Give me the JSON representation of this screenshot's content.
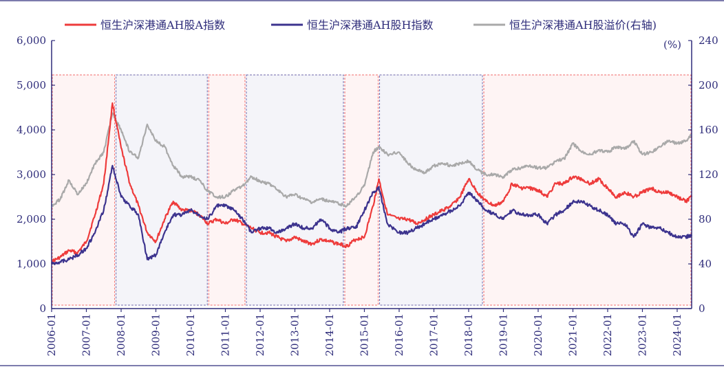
{
  "chart_data": {
    "type": "line",
    "title": "",
    "legend": {
      "placement": "top",
      "entries": [
        {
          "name": "恒生沪深港通AH股A指数",
          "color": "#ee3b3b"
        },
        {
          "name": "恒生沪深港通AH股H指数",
          "color": "#3c338e"
        },
        {
          "name": "恒生沪深港通AH股溢价(右轴)",
          "color": "#a9a9a9"
        }
      ]
    },
    "x_axis": {
      "type": "date",
      "range": [
        "2006-01",
        "2024-06"
      ],
      "tick_labels": [
        "2006-01",
        "2007-01",
        "2008-01",
        "2009-01",
        "2010-01",
        "2011-01",
        "2012-01",
        "2013-01",
        "2014-01",
        "2015-01",
        "2016-01",
        "2017-01",
        "2018-01",
        "2019-01",
        "2020-01",
        "2021-01",
        "2022-01",
        "2023-01",
        "2024-01"
      ]
    },
    "y_axis_left": {
      "range": [
        0,
        6000
      ],
      "tick_labels": [
        "0",
        "1,000",
        "2,000",
        "3,000",
        "4,000",
        "5,000",
        "6,000"
      ]
    },
    "y_axis_right": {
      "range": [
        0,
        240
      ],
      "unit": "(%)",
      "tick_labels": [
        "0",
        "40",
        "80",
        "120",
        "160",
        "200",
        "240"
      ]
    },
    "grid": false,
    "shaded_periods": [
      {
        "start": "2006-01",
        "end": "2007-11",
        "color": "#ee3b3b"
      },
      {
        "start": "2007-11",
        "end": "2010-07",
        "color": "#3c338e"
      },
      {
        "start": "2010-07",
        "end": "2011-08",
        "color": "#ee3b3b"
      },
      {
        "start": "2011-08",
        "end": "2014-06",
        "color": "#3c338e"
      },
      {
        "start": "2014-06",
        "end": "2015-06",
        "color": "#ee3b3b"
      },
      {
        "start": "2015-06",
        "end": "2018-06",
        "color": "#3c338e"
      },
      {
        "start": "2018-06",
        "end": "2024-06",
        "color": "#ee3b3b"
      }
    ],
    "series": [
      {
        "name": "恒生沪深港通AH股A指数",
        "axis": "left",
        "color": "#ee3b3b",
        "x": [
          "2006-01",
          "2006-04",
          "2006-07",
          "2006-10",
          "2007-01",
          "2007-04",
          "2007-07",
          "2007-10",
          "2008-01",
          "2008-04",
          "2008-07",
          "2008-10",
          "2009-01",
          "2009-04",
          "2009-07",
          "2009-10",
          "2010-01",
          "2010-04",
          "2010-07",
          "2010-10",
          "2011-01",
          "2011-04",
          "2011-07",
          "2011-10",
          "2012-01",
          "2012-04",
          "2012-07",
          "2012-10",
          "2013-01",
          "2013-04",
          "2013-07",
          "2013-10",
          "2014-01",
          "2014-04",
          "2014-07",
          "2014-10",
          "2015-01",
          "2015-04",
          "2015-06",
          "2015-09",
          "2016-01",
          "2016-04",
          "2016-07",
          "2016-10",
          "2017-01",
          "2017-04",
          "2017-07",
          "2017-10",
          "2018-01",
          "2018-04",
          "2018-07",
          "2018-10",
          "2019-01",
          "2019-04",
          "2019-07",
          "2019-10",
          "2020-01",
          "2020-04",
          "2020-07",
          "2020-10",
          "2021-01",
          "2021-04",
          "2021-07",
          "2021-10",
          "2022-01",
          "2022-04",
          "2022-07",
          "2022-10",
          "2023-01",
          "2023-04",
          "2023-07",
          "2023-10",
          "2024-01",
          "2024-04",
          "2024-06"
        ],
        "values": [
          1050,
          1150,
          1300,
          1250,
          1500,
          2100,
          2800,
          4600,
          3600,
          2800,
          2300,
          1700,
          1500,
          2000,
          2400,
          2200,
          2200,
          2100,
          1900,
          2000,
          1900,
          2000,
          1900,
          1800,
          1700,
          1700,
          1600,
          1500,
          1600,
          1500,
          1450,
          1550,
          1500,
          1450,
          1400,
          1550,
          1600,
          2300,
          2900,
          2100,
          2000,
          2000,
          1900,
          2000,
          2100,
          2200,
          2300,
          2500,
          2900,
          2600,
          2400,
          2300,
          2400,
          2800,
          2700,
          2700,
          2650,
          2500,
          2800,
          2800,
          2950,
          2900,
          2800,
          2900,
          2700,
          2500,
          2600,
          2500,
          2600,
          2700,
          2600,
          2600,
          2500,
          2400,
          2500
        ]
      },
      {
        "name": "恒生沪深港通AH股H指数",
        "axis": "left",
        "color": "#3c338e",
        "x": [
          "2006-01",
          "2006-04",
          "2006-07",
          "2006-10",
          "2007-01",
          "2007-04",
          "2007-07",
          "2007-10",
          "2008-01",
          "2008-04",
          "2008-07",
          "2008-10",
          "2009-01",
          "2009-04",
          "2009-07",
          "2009-10",
          "2010-01",
          "2010-04",
          "2010-07",
          "2010-10",
          "2011-01",
          "2011-04",
          "2011-07",
          "2011-10",
          "2012-01",
          "2012-04",
          "2012-07",
          "2012-10",
          "2013-01",
          "2013-04",
          "2013-07",
          "2013-10",
          "2014-01",
          "2014-04",
          "2014-07",
          "2014-10",
          "2015-01",
          "2015-04",
          "2015-06",
          "2015-09",
          "2016-01",
          "2016-04",
          "2016-07",
          "2016-10",
          "2017-01",
          "2017-04",
          "2017-07",
          "2017-10",
          "2018-01",
          "2018-04",
          "2018-07",
          "2018-10",
          "2019-01",
          "2019-04",
          "2019-07",
          "2019-10",
          "2020-01",
          "2020-04",
          "2020-07",
          "2020-10",
          "2021-01",
          "2021-04",
          "2021-07",
          "2021-10",
          "2022-01",
          "2022-04",
          "2022-07",
          "2022-10",
          "2023-01",
          "2023-04",
          "2023-07",
          "2023-10",
          "2024-01",
          "2024-04",
          "2024-06"
        ],
        "values": [
          1000,
          1050,
          1100,
          1200,
          1350,
          1700,
          2200,
          3200,
          2500,
          2300,
          2100,
          1100,
          1200,
          1700,
          2100,
          2100,
          2200,
          2100,
          2000,
          2300,
          2300,
          2200,
          2000,
          1700,
          1800,
          1800,
          1700,
          1800,
          1900,
          1800,
          1800,
          2000,
          1800,
          1700,
          1800,
          1800,
          2200,
          2600,
          2700,
          1900,
          1700,
          1700,
          1800,
          1900,
          2000,
          2100,
          2200,
          2300,
          2600,
          2400,
          2200,
          2100,
          2000,
          2200,
          2100,
          2100,
          2100,
          1900,
          2100,
          2200,
          2400,
          2400,
          2300,
          2200,
          2100,
          1900,
          1900,
          1600,
          1900,
          1800,
          1800,
          1700,
          1600,
          1600,
          1650
        ]
      },
      {
        "name": "恒生沪深港通AH股溢价(右轴)",
        "axis": "right",
        "color": "#a9a9a9",
        "x": [
          "2006-01",
          "2006-04",
          "2006-07",
          "2006-10",
          "2007-01",
          "2007-04",
          "2007-07",
          "2007-10",
          "2008-01",
          "2008-04",
          "2008-07",
          "2008-10",
          "2009-01",
          "2009-04",
          "2009-07",
          "2009-10",
          "2010-01",
          "2010-04",
          "2010-07",
          "2010-10",
          "2011-01",
          "2011-04",
          "2011-07",
          "2011-10",
          "2012-01",
          "2012-04",
          "2012-07",
          "2012-10",
          "2013-01",
          "2013-04",
          "2013-07",
          "2013-10",
          "2014-01",
          "2014-04",
          "2014-07",
          "2014-10",
          "2015-01",
          "2015-04",
          "2015-06",
          "2015-09",
          "2016-01",
          "2016-04",
          "2016-07",
          "2016-10",
          "2017-01",
          "2017-04",
          "2017-07",
          "2017-10",
          "2018-01",
          "2018-04",
          "2018-07",
          "2018-10",
          "2019-01",
          "2019-04",
          "2019-07",
          "2019-10",
          "2020-01",
          "2020-04",
          "2020-07",
          "2020-10",
          "2021-01",
          "2021-04",
          "2021-07",
          "2021-10",
          "2022-01",
          "2022-04",
          "2022-07",
          "2022-10",
          "2023-01",
          "2023-04",
          "2023-07",
          "2023-10",
          "2024-01",
          "2024-04",
          "2024-06"
        ],
        "values": [
          92,
          98,
          115,
          102,
          112,
          130,
          140,
          175,
          160,
          140,
          135,
          165,
          150,
          145,
          128,
          118,
          118,
          115,
          105,
          100,
          100,
          106,
          110,
          118,
          114,
          112,
          106,
          100,
          102,
          98,
          95,
          98,
          96,
          94,
          92,
          100,
          110,
          140,
          145,
          138,
          140,
          130,
          124,
          122,
          128,
          130,
          128,
          130,
          132,
          124,
          120,
          120,
          118,
          124,
          126,
          128,
          126,
          126,
          132,
          134,
          148,
          140,
          138,
          142,
          140,
          145,
          143,
          150,
          138,
          140,
          145,
          150,
          148,
          150,
          156
        ]
      }
    ]
  }
}
